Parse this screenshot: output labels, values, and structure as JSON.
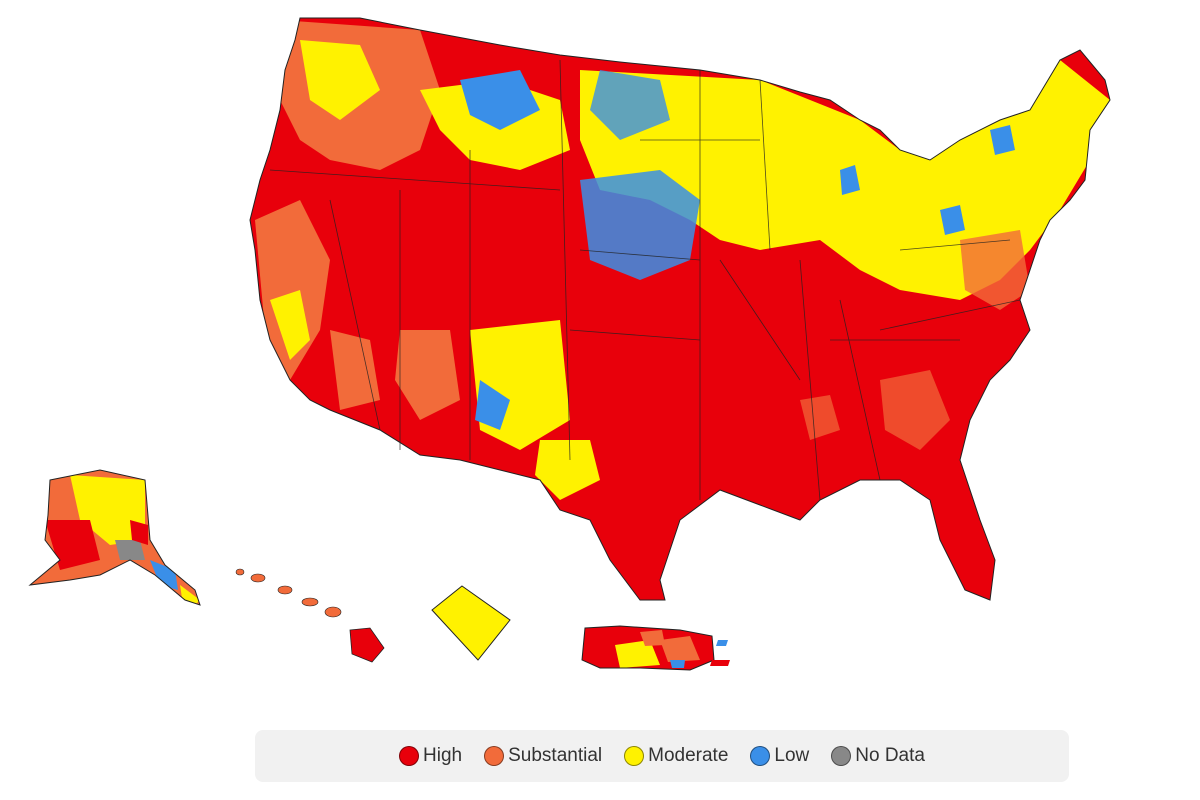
{
  "levels": [
    {
      "key": "high",
      "label": "High",
      "color": "#e8000b"
    },
    {
      "key": "substantial",
      "label": "Substantial",
      "color": "#f26b3a"
    },
    {
      "key": "moderate",
      "label": "Moderate",
      "color": "#fff200"
    },
    {
      "key": "low",
      "label": "Low",
      "color": "#3a8fe8"
    },
    {
      "key": "nodata",
      "label": "No Data",
      "color": "#888888"
    }
  ],
  "regions": [
    {
      "name": "contiguous-us",
      "level": "mixed"
    },
    {
      "name": "alaska",
      "level": "mixed"
    },
    {
      "name": "hawaii",
      "level": "mixed"
    },
    {
      "name": "district-of-columbia",
      "level": "moderate"
    },
    {
      "name": "puerto-rico",
      "level": "mixed"
    }
  ]
}
